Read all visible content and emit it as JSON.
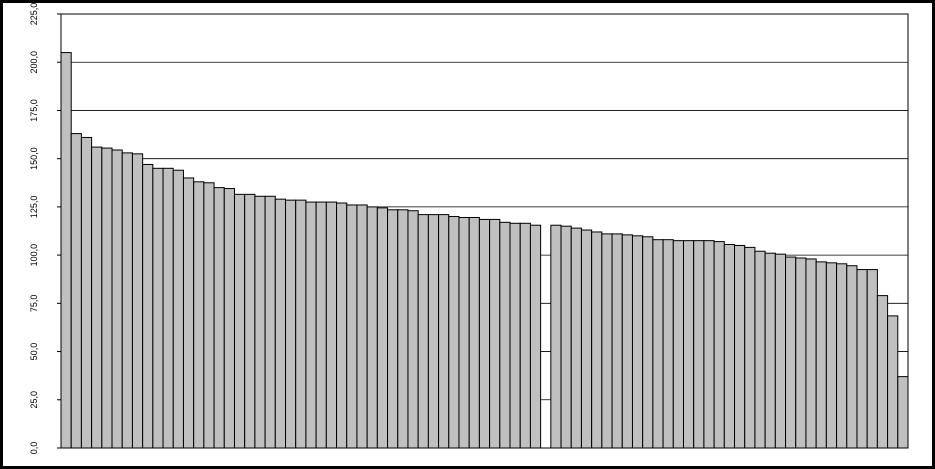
{
  "chart_data": {
    "type": "bar",
    "color": "#c0c0c0",
    "grid": true,
    "categories": [
      null,
      null,
      null,
      null,
      null,
      null,
      null,
      null,
      null,
      null,
      null,
      null,
      null,
      null,
      null,
      null,
      null,
      null,
      null,
      null,
      null,
      null,
      null,
      null,
      null,
      null,
      null,
      null,
      null,
      null,
      null,
      null,
      null,
      null,
      null,
      null,
      null,
      null,
      null,
      null,
      null,
      null,
      null,
      null,
      null,
      null,
      null,
      null,
      null,
      null,
      null,
      null,
      null,
      null,
      null,
      null,
      null,
      null,
      null,
      null,
      null,
      null,
      null,
      null,
      null,
      null,
      null,
      null,
      null,
      null,
      null,
      null,
      null,
      null,
      null,
      null,
      null,
      null,
      null,
      null,
      null,
      null,
      null
    ],
    "values": [
      205,
      163,
      161,
      156,
      155.5,
      154.5,
      153,
      152.5,
      147,
      145,
      145,
      144,
      140,
      138,
      137.5,
      135,
      134.5,
      131.5,
      131.5,
      130.5,
      130.5,
      129,
      128.5,
      128.5,
      127.5,
      127.5,
      127.5,
      127,
      126,
      126,
      125,
      124.5,
      123.5,
      123.5,
      123,
      121,
      121,
      121,
      120,
      119.5,
      119.5,
      118.5,
      118.5,
      117,
      116.5,
      116.5,
      115.5,
      null,
      115.5,
      115,
      114,
      113,
      112,
      111,
      111,
      110.5,
      110,
      109.5,
      108,
      108,
      107.5,
      107.5,
      107.5,
      107.5,
      107,
      105.5,
      105,
      104,
      102,
      101,
      100.5,
      99,
      98.5,
      98,
      96.5,
      96,
      95.5,
      94.5,
      92.5,
      92.5,
      79,
      68.5,
      37
    ],
    "ylim": [
      0,
      225
    ],
    "yticks": [
      {
        "value": 0,
        "label": "0,0"
      },
      {
        "value": 25,
        "label": "25,0"
      },
      {
        "value": 50,
        "label": "50,0"
      },
      {
        "value": 75,
        "label": "75,0"
      },
      {
        "value": 100,
        "label": "100,0"
      },
      {
        "value": 125,
        "label": "125,0"
      },
      {
        "value": 150,
        "label": "150,0"
      },
      {
        "value": 175,
        "label": "175,0"
      },
      {
        "value": 200,
        "label": "200,0"
      },
      {
        "value": 225,
        "label": "225,0"
      }
    ]
  }
}
